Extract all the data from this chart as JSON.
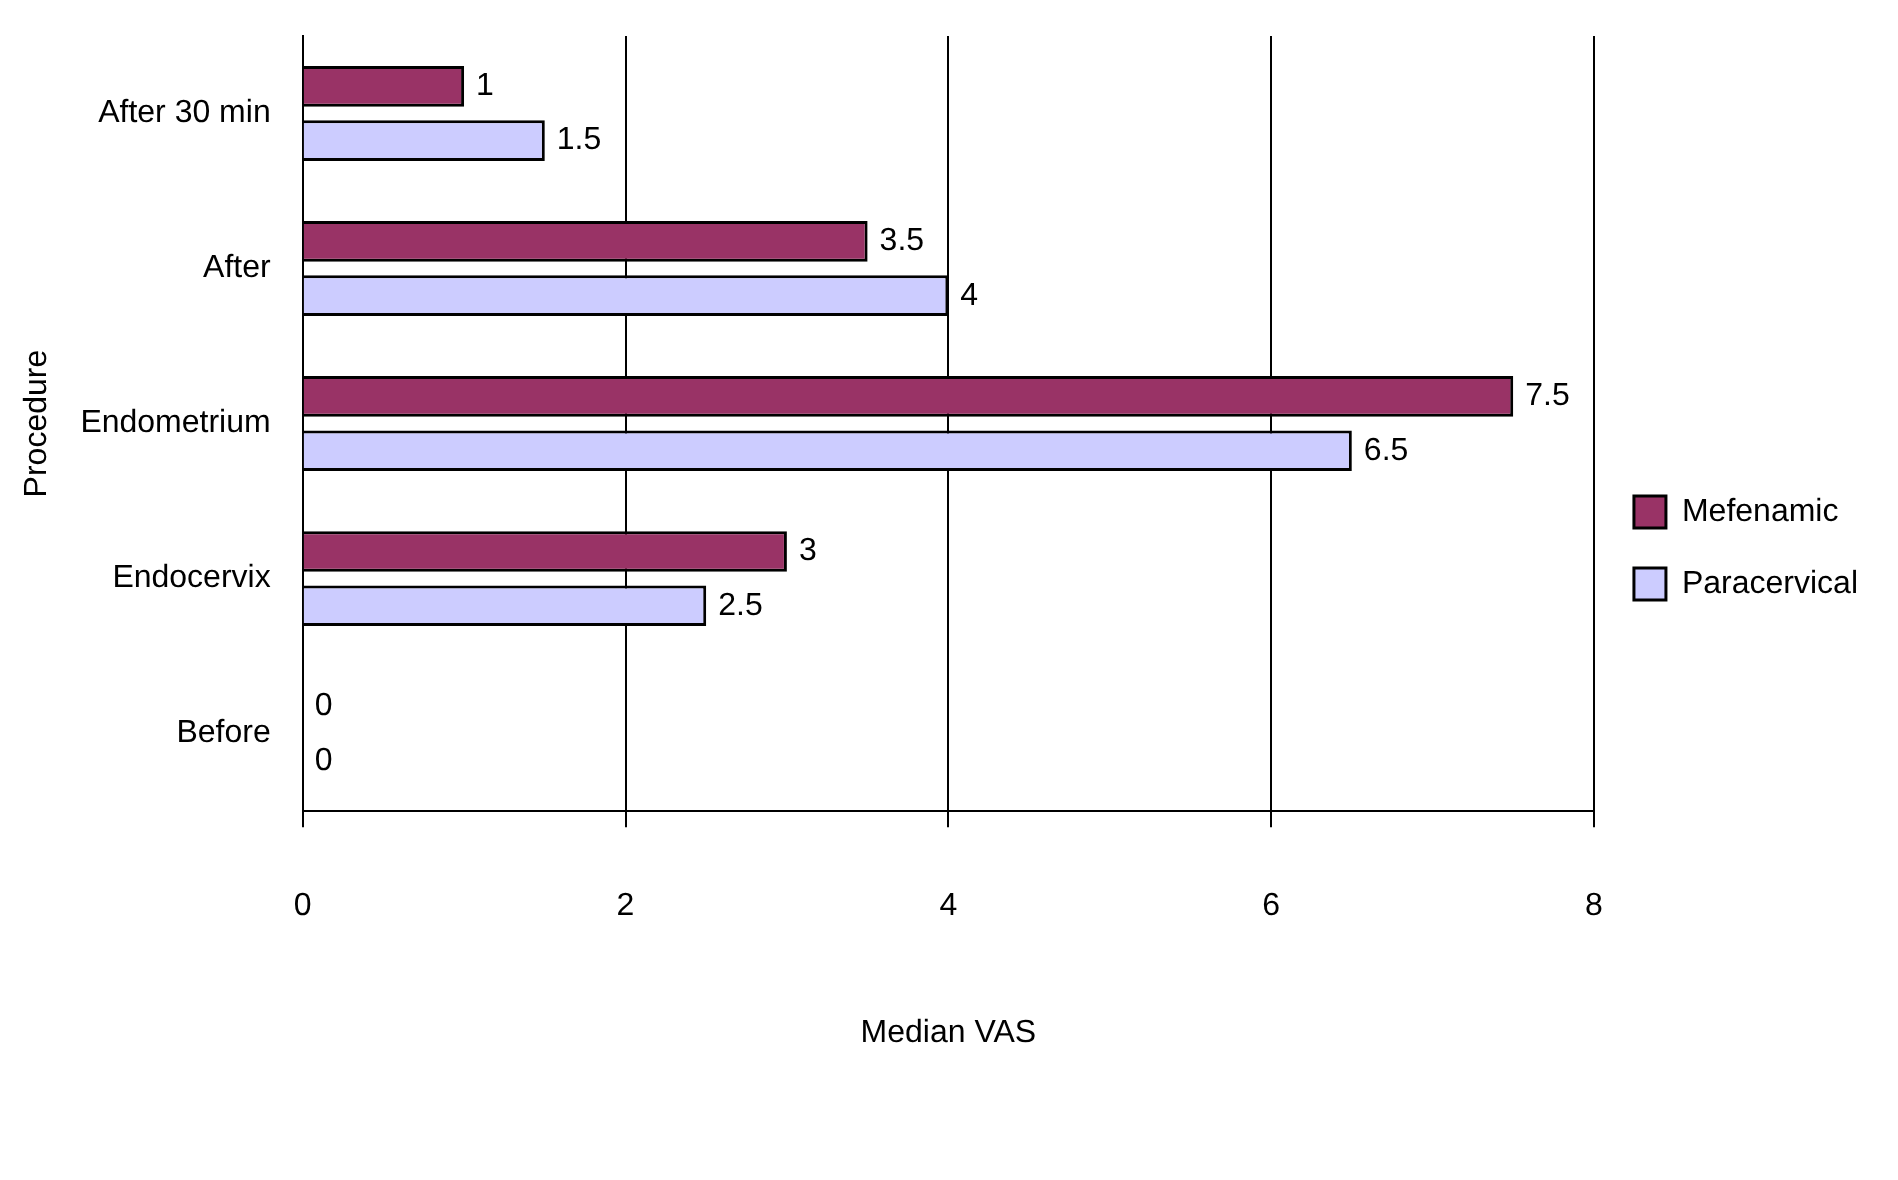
{
  "chart_data": {
    "type": "bar",
    "orientation": "horizontal",
    "xlabel": "Median VAS",
    "ylabel": "Procedure",
    "categories": [
      "After 30 min",
      "After",
      "Endometrium",
      "Endocervix",
      "Before"
    ],
    "series": [
      {
        "name": "Mefenamic",
        "color": "#993366",
        "values": [
          1,
          3.5,
          7.5,
          3,
          0
        ]
      },
      {
        "name": "Paracervical",
        "color": "#ccccff",
        "values": [
          1.5,
          4,
          6.5,
          2.5,
          0
        ]
      }
    ],
    "xlim": [
      0,
      8
    ],
    "xticks": [
      0,
      2,
      4,
      6,
      8
    ],
    "grid": "x",
    "legend": "right",
    "data_labels": true
  }
}
